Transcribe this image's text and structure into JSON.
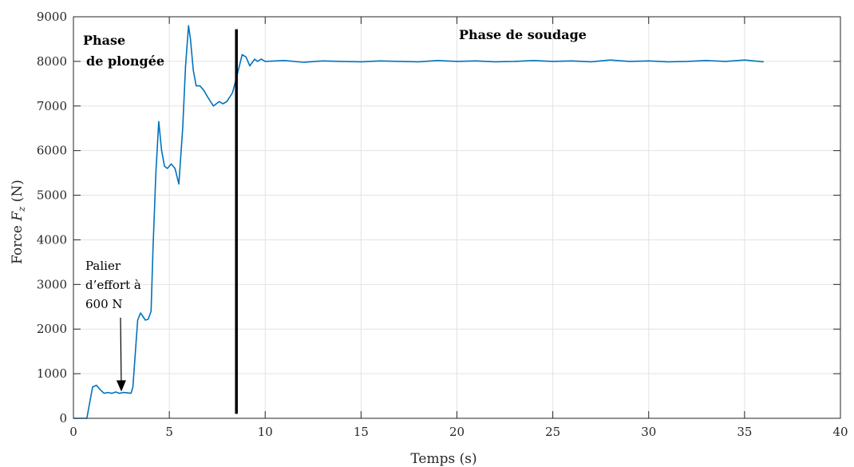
{
  "chart_data": {
    "type": "line",
    "xlabel": "Temps (s)",
    "ylabel_prefix": "Force ",
    "ylabel_var": "F",
    "ylabel_sub": "z",
    "ylabel_suffix": " (N)",
    "xlim": [
      0,
      40
    ],
    "ylim": [
      0,
      9000
    ],
    "xticks": [
      0,
      5,
      10,
      15,
      20,
      25,
      30,
      35,
      40
    ],
    "yticks": [
      0,
      1000,
      2000,
      3000,
      4000,
      5000,
      6000,
      7000,
      8000,
      9000
    ],
    "grid": true,
    "line_color": "#0072BD",
    "series": [
      {
        "x": [
          0,
          0.7,
          0.85,
          1.0,
          1.2,
          1.4,
          1.6,
          1.8,
          2.0,
          2.2,
          2.4,
          2.6,
          2.8,
          3.0,
          3.1,
          3.2,
          3.35,
          3.5,
          3.6,
          3.75,
          3.9,
          4.05,
          4.15,
          4.3,
          4.45,
          4.6,
          4.75,
          4.9,
          5.1,
          5.3,
          5.5,
          5.7,
          5.85,
          6.0,
          6.1,
          6.25,
          6.4,
          6.6,
          6.8,
          7.0,
          7.3,
          7.6,
          7.8,
          8.0,
          8.3,
          8.6,
          8.8,
          9.0,
          9.2,
          9.45,
          9.6,
          9.8,
          10.0,
          11.0,
          12.0,
          13.0,
          14.0,
          15.0,
          16.0,
          17.0,
          18.0,
          19.0,
          20.0,
          21.0,
          22.0,
          23.0,
          24.0,
          25.0,
          26.0,
          27.0,
          28.0,
          29.0,
          30.0,
          31.0,
          32.0,
          33.0,
          34.0,
          35.0,
          36.0
        ],
        "y": [
          0,
          0,
          350,
          700,
          740,
          640,
          560,
          580,
          560,
          590,
          560,
          580,
          570,
          560,
          700,
          1300,
          2200,
          2360,
          2300,
          2200,
          2220,
          2400,
          3800,
          5500,
          6650,
          6000,
          5650,
          5600,
          5700,
          5600,
          5250,
          6500,
          7900,
          8800,
          8500,
          7800,
          7450,
          7450,
          7350,
          7200,
          7000,
          7100,
          7050,
          7100,
          7300,
          7800,
          8150,
          8100,
          7900,
          8050,
          8000,
          8050,
          8000,
          8020,
          7980,
          8010,
          8000,
          7990,
          8010,
          8000,
          7990,
          8020,
          8000,
          8010,
          7990,
          8000,
          8020,
          8000,
          8010,
          7990,
          8030,
          8000,
          8010,
          7990,
          8000,
          8020,
          8000,
          8030,
          7990
        ]
      }
    ],
    "divider_x": 8.5,
    "divider_y_range": [
      100,
      8720
    ],
    "annotations": {
      "plunge_line1": "Phase",
      "plunge_line2": "de plongée",
      "welding": "Phase de soudage",
      "palier_line1": "Palier",
      "palier_line2": "d’effort à",
      "palier_line3": "600 N",
      "arrow_tip": [
        2.5,
        600
      ]
    }
  }
}
